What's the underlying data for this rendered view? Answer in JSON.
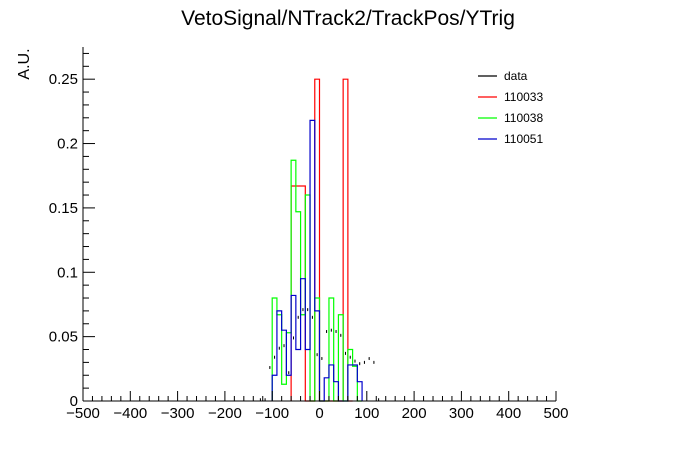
{
  "chart_data": {
    "type": "histogram",
    "title": "VetoSignal/NTrack2/TrackPos/YTrig",
    "xlabel": "",
    "ylabel": "A.U.",
    "xlim": [
      -500,
      500
    ],
    "ylim": [
      0,
      0.275
    ],
    "bin_width": 10,
    "x_ticks": [
      -500,
      -400,
      -300,
      -200,
      -100,
      0,
      100,
      200,
      300,
      400,
      500
    ],
    "x_tick_labels": [
      "−500",
      "−400",
      "−300",
      "−200",
      "−100",
      "0",
      "100",
      "200",
      "300",
      "400",
      "500"
    ],
    "y_ticks": [
      0,
      0.05,
      0.1,
      0.15,
      0.2,
      0.25
    ],
    "y_tick_labels": [
      "0",
      "0.05",
      "0.1",
      "0.15",
      "0.2",
      "0.25"
    ],
    "grid": false,
    "legend_position": "top-right",
    "series": [
      {
        "name": "data",
        "style": "points",
        "color": "#000000",
        "bin_centers": [
          -125,
          -115,
          -105,
          -95,
          -85,
          -75,
          -65,
          -55,
          -45,
          -35,
          -25,
          -15,
          -5,
          5,
          15,
          25,
          35,
          45,
          55,
          65,
          75,
          85,
          95,
          105,
          115,
          125
        ],
        "values": [
          0.001,
          0.001,
          0.026,
          0.034,
          0.041,
          0.043,
          0.022,
          0.049,
          0.065,
          0.071,
          0.071,
          0.065,
          0.036,
          0.033,
          0.054,
          0.055,
          0.054,
          0.051,
          0.037,
          0.034,
          0.031,
          0.029,
          0.03,
          0.033,
          0.03,
          0.001
        ]
      },
      {
        "name": "110033",
        "style": "step",
        "color": "#ff0000",
        "edges": [
          -60,
          -50,
          -40,
          -30,
          -20,
          -10,
          0,
          10,
          20,
          30,
          40,
          50,
          60,
          70
        ],
        "values": [
          0.167,
          0.167,
          0.167,
          0,
          0,
          0.25,
          0,
          0,
          0,
          0,
          0,
          0.25,
          0
        ]
      },
      {
        "name": "110038",
        "style": "step",
        "color": "#00ff00",
        "edges": [
          -100,
          -90,
          -80,
          -70,
          -60,
          -50,
          -40,
          -30,
          -20,
          -10,
          0,
          10,
          20,
          30,
          40,
          50,
          60,
          70,
          80,
          90
        ],
        "values": [
          0.08,
          0.067,
          0.013,
          0.053,
          0.187,
          0.147,
          0.067,
          0.16,
          0,
          0.08,
          0,
          0,
          0.08,
          0,
          0.067,
          0,
          0.04,
          0.027,
          0
        ]
      },
      {
        "name": "110051",
        "style": "step",
        "color": "#0000cc",
        "edges": [
          -100,
          -90,
          -80,
          -70,
          -60,
          -50,
          -40,
          -30,
          -20,
          -10,
          0,
          10,
          20,
          30,
          40,
          50,
          60,
          70,
          80,
          90
        ],
        "values": [
          0.02,
          0.07,
          0.055,
          0.02,
          0.082,
          0.04,
          0.095,
          0.04,
          0.218,
          0.07,
          0,
          0.018,
          0.028,
          0.015,
          0,
          0,
          0.028,
          0.028,
          0.015
        ]
      }
    ]
  }
}
